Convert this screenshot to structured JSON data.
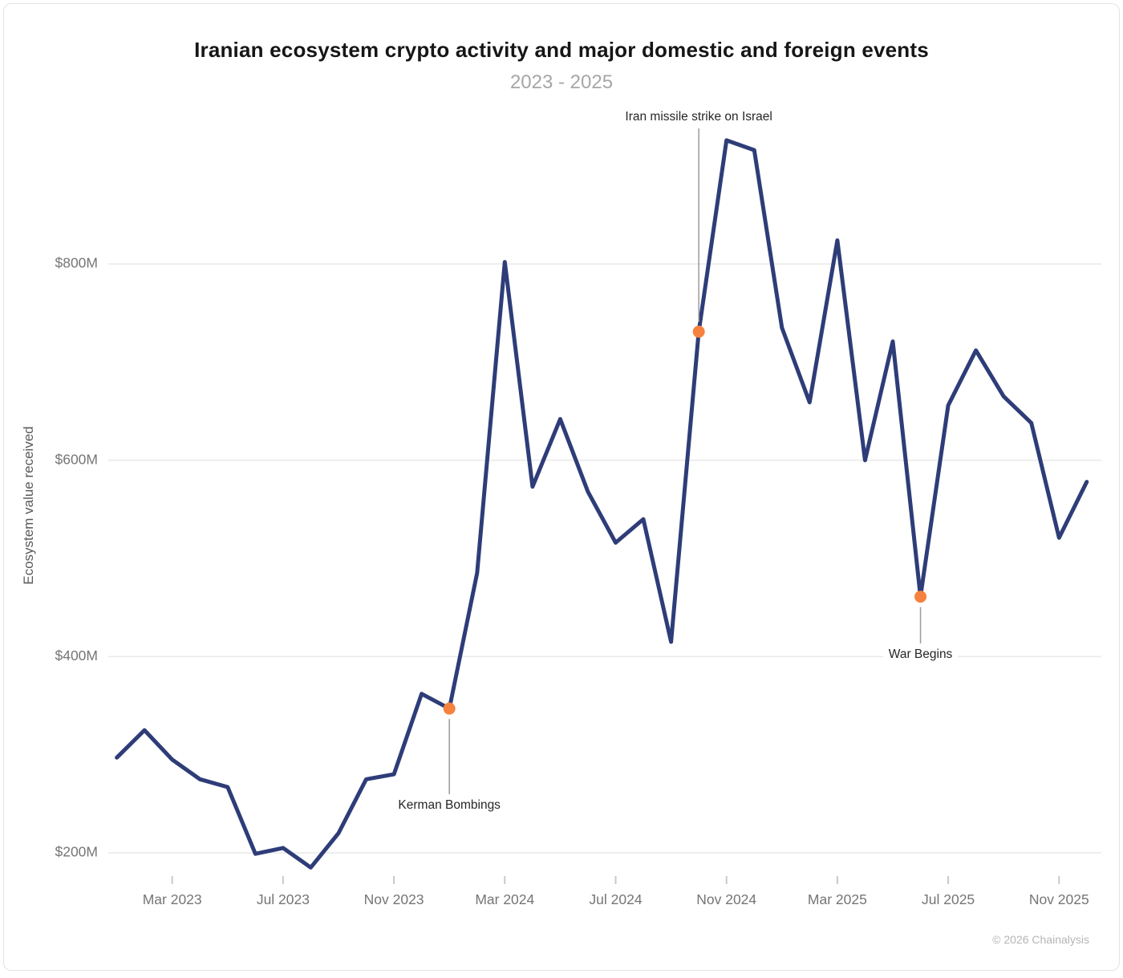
{
  "header": {
    "title": "Iranian ecosystem crypto activity and major domestic and foreign events",
    "subtitle": "2023 - 2025"
  },
  "y_axis": {
    "title": "Ecosystem value received",
    "ticks": [
      "$200M",
      "$400M",
      "$600M",
      "$800M"
    ],
    "tick_values": [
      200,
      400,
      600,
      800
    ]
  },
  "x_axis": {
    "ticks": [
      {
        "label": "Mar 2023",
        "month_index": 2
      },
      {
        "label": "Jul 2023",
        "month_index": 6
      },
      {
        "label": "Nov 2023",
        "month_index": 10
      },
      {
        "label": "Mar 2024",
        "month_index": 14
      },
      {
        "label": "Jul 2024",
        "month_index": 18
      },
      {
        "label": "Nov 2024",
        "month_index": 22
      },
      {
        "label": "Mar 2025",
        "month_index": 26
      },
      {
        "label": "Jul 2025",
        "month_index": 30
      },
      {
        "label": "Nov 2025",
        "month_index": 34
      }
    ]
  },
  "footer": {
    "copyright": "© 2026 Chainalysis"
  },
  "chart_data": {
    "type": "line",
    "title": "Iranian ecosystem crypto activity and major domestic and foreign events",
    "subtitle": "2023 - 2025",
    "xlabel": "",
    "ylabel": "Ecosystem value received",
    "unit": "USD millions",
    "ylim": [
      150,
      950
    ],
    "grid_values": [
      200,
      400,
      600,
      800
    ],
    "grid_on": true,
    "x": [
      "Jan 2023",
      "Feb 2023",
      "Mar 2023",
      "Apr 2023",
      "May 2023",
      "Jun 2023",
      "Jul 2023",
      "Aug 2023",
      "Sep 2023",
      "Oct 2023",
      "Nov 2023",
      "Dec 2023",
      "Jan 2024",
      "Feb 2024",
      "Mar 2024",
      "Apr 2024",
      "May 2024",
      "Jun 2024",
      "Jul 2024",
      "Aug 2024",
      "Sep 2024",
      "Oct 2024",
      "Nov 2024",
      "Dec 2024",
      "Jan 2025",
      "Feb 2025",
      "Mar 2025",
      "Apr 2025",
      "May 2025",
      "Jun 2025",
      "Jul 2025",
      "Aug 2025",
      "Sep 2025",
      "Oct 2025",
      "Nov 2025",
      "Dec 2025"
    ],
    "values": [
      297,
      325,
      295,
      275,
      267,
      199,
      205,
      185,
      220,
      275,
      280,
      362,
      347,
      485,
      802,
      573,
      642,
      568,
      516,
      540,
      415,
      731,
      926,
      916,
      735,
      659,
      824,
      600,
      721,
      461,
      656,
      712,
      665,
      638,
      521,
      578
    ],
    "annotations": [
      {
        "label": "Kerman Bombings",
        "x": "Jan 2024",
        "month_index": 12,
        "value": 347,
        "label_side": "below"
      },
      {
        "label": "Iran missile strike on Israel",
        "x": "Oct 2024",
        "month_index": 21,
        "value": 731,
        "label_side": "above"
      },
      {
        "label": "War Begins",
        "x": "Jun 2025",
        "month_index": 29,
        "value": 461,
        "label_side": "below"
      }
    ],
    "colors": {
      "line": "#2e3d78",
      "event_dot": "#f5823f",
      "gridline": "#e9e9e9",
      "tick_mark": "#c9c9c9",
      "leader_line": "#9b9b9b"
    }
  }
}
